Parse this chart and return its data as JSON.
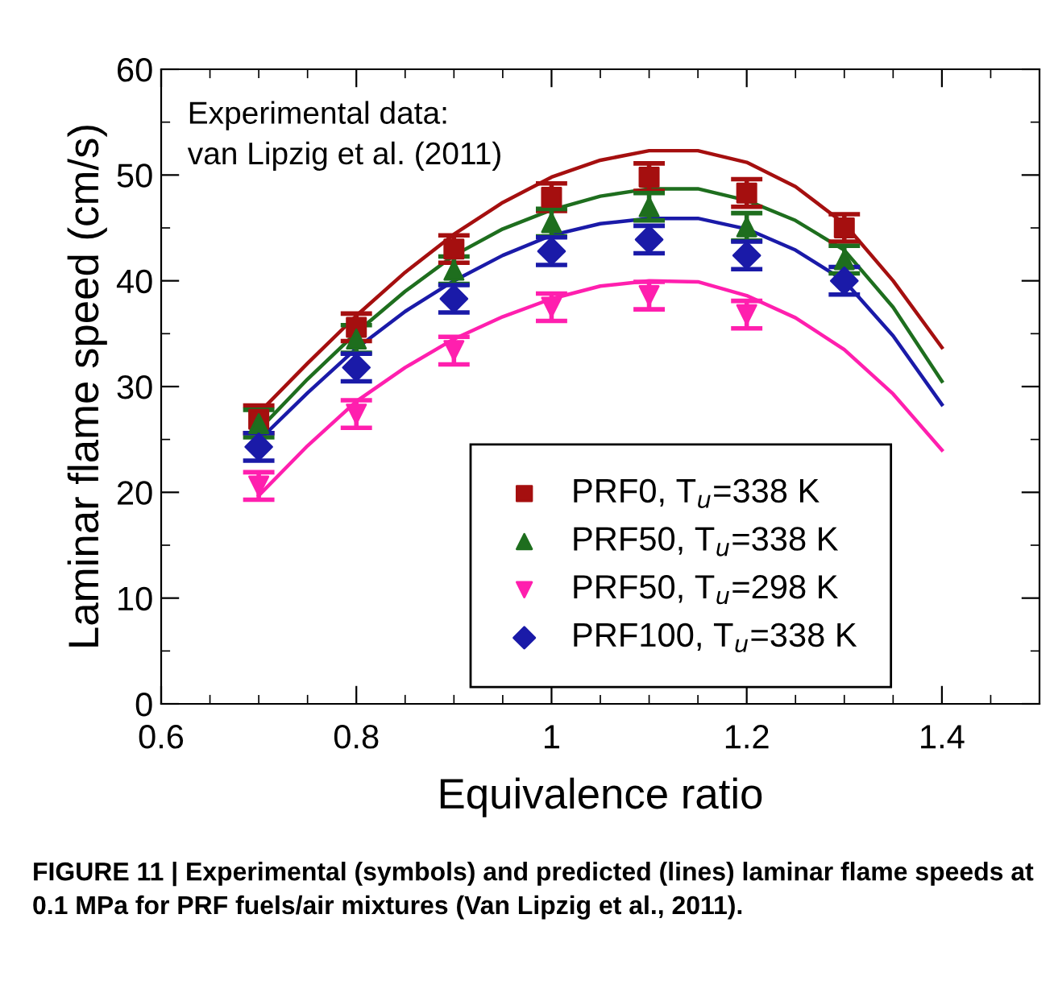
{
  "chart_data": {
    "type": "scatter",
    "xlabel": "Equivalence ratio",
    "ylabel": "Laminar flame speed (cm/s)",
    "xlim": [
      0.6,
      1.5
    ],
    "ylim": [
      0,
      60
    ],
    "xticks": [
      0.6,
      0.8,
      1,
      1.2,
      1.4,
      {
        "value": 0.65,
        "label": null
      },
      {
        "value": 0.7,
        "label": null
      },
      {
        "value": 0.75,
        "label": null
      },
      {
        "value": 0.85,
        "label": null
      },
      {
        "value": 0.9,
        "label": null
      },
      {
        "value": 0.95,
        "label": null
      },
      {
        "value": 1.05,
        "label": null
      },
      {
        "value": 1.1,
        "label": null
      },
      {
        "value": 1.15,
        "label": null
      },
      {
        "value": 1.25,
        "label": null
      },
      {
        "value": 1.3,
        "label": null
      },
      {
        "value": 1.35,
        "label": null
      },
      {
        "value": 1.45,
        "label": null
      }
    ],
    "yticks": [
      0,
      10,
      20,
      30,
      40,
      50,
      60,
      {
        "value": 5,
        "label": null
      },
      {
        "value": 15,
        "label": null
      },
      {
        "value": 25,
        "label": null
      },
      {
        "value": 35,
        "label": null
      },
      {
        "value": 45,
        "label": null
      },
      {
        "value": 55,
        "label": null
      }
    ],
    "grid": false,
    "legend": "bottom right",
    "series": [
      {
        "name": "PRF0, T$_{u}$=338 K",
        "marker": "square",
        "color": "#a50f0f",
        "x": [
          0.7,
          0.8,
          0.9,
          1.0,
          1.1,
          1.2,
          1.3
        ],
        "values": [
          26.9,
          35.6,
          43.0,
          47.9,
          49.8,
          48.3,
          45.0
        ],
        "errors": [
          1.3,
          1.3,
          1.3,
          1.3,
          1.3,
          1.3,
          1.3
        ]
      },
      {
        "name": "PRF50, T$_{u}$=338 K",
        "marker": "triangle",
        "color": "#1e6e1e",
        "x": [
          0.7,
          0.8,
          0.9,
          1.0,
          1.1,
          1.2,
          1.3
        ],
        "values": [
          26.5,
          34.5,
          41.0,
          45.5,
          47.0,
          45.1,
          42.0
        ],
        "errors": [
          1.3,
          1.3,
          1.3,
          1.3,
          1.3,
          1.3,
          1.3
        ]
      },
      {
        "name": "PRF50, T$_{u}$=298 K",
        "marker": "triangle-down",
        "color": "#ff1fae",
        "x": [
          0.7,
          0.8,
          0.9,
          1.0,
          1.1,
          1.2
        ],
        "values": [
          20.6,
          27.4,
          33.4,
          37.5,
          38.6,
          36.8
        ],
        "errors": [
          1.3,
          1.3,
          1.3,
          1.3,
          1.3,
          1.3
        ]
      },
      {
        "name": "PRF100, T$_{u}$=338 K",
        "marker": "diamond",
        "color": "#1a1aa8",
        "x": [
          0.7,
          0.8,
          0.9,
          1.0,
          1.1,
          1.2,
          1.3
        ],
        "values": [
          24.3,
          31.8,
          38.3,
          42.8,
          43.9,
          42.4,
          40.0
        ],
        "errors": [
          1.3,
          1.3,
          1.3,
          1.3,
          1.3,
          1.3,
          1.3
        ]
      },
      {
        "type": "line",
        "color": "#a50f0f",
        "x": [
          0.7,
          0.75,
          0.8,
          0.85,
          0.9,
          0.95,
          1.0,
          1.05,
          1.1,
          1.15,
          1.2,
          1.25,
          1.3,
          1.35,
          1.4
        ],
        "values": [
          27.5,
          32.2,
          36.7,
          40.8,
          44.4,
          47.4,
          49.8,
          51.4,
          52.3,
          52.3,
          51.2,
          48.9,
          45.4,
          40.0,
          33.7
        ]
      },
      {
        "type": "line",
        "color": "#1e6e1e",
        "x": [
          0.7,
          0.75,
          0.8,
          0.85,
          0.9,
          0.95,
          1.0,
          1.05,
          1.1,
          1.15,
          1.2,
          1.25,
          1.3,
          1.35,
          1.4
        ],
        "values": [
          25.9,
          30.7,
          35.1,
          39.0,
          42.4,
          44.9,
          46.7,
          48.0,
          48.7,
          48.7,
          47.6,
          45.7,
          42.9,
          37.5,
          30.5
        ]
      },
      {
        "type": "line",
        "color": "#ff1fae",
        "x": [
          0.7,
          0.75,
          0.8,
          0.85,
          0.9,
          0.95,
          1.0,
          1.05,
          1.1,
          1.15,
          1.2,
          1.25,
          1.3,
          1.35,
          1.4
        ],
        "values": [
          19.7,
          24.4,
          28.6,
          31.8,
          34.5,
          36.6,
          38.3,
          39.5,
          40.0,
          39.9,
          38.6,
          36.5,
          33.5,
          29.3,
          24.0
        ]
      },
      {
        "type": "line",
        "color": "#1a1aa8",
        "x": [
          0.7,
          0.75,
          0.8,
          0.85,
          0.9,
          0.95,
          1.0,
          1.05,
          1.1,
          1.15,
          1.2,
          1.25,
          1.3,
          1.35,
          1.4
        ],
        "values": [
          24.9,
          29.4,
          33.6,
          37.1,
          40.0,
          42.4,
          44.3,
          45.4,
          45.9,
          45.9,
          44.9,
          42.9,
          40.0,
          34.8,
          28.3
        ]
      }
    ],
    "annotations": [
      "Experimental data:\nvan Lipzig et al. (2011)",
      "FIGURE 11 | Experimental (symbols) and predicted (lines) laminar flame speeds at 0.1 MPa for PRF fuels/air mixtures (Van Lipzig et al., 2011)."
    ]
  }
}
